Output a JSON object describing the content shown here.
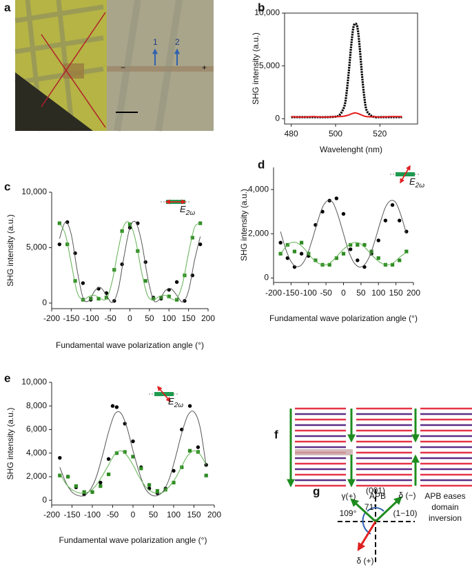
{
  "panel_labels": [
    "a",
    "b",
    "c",
    "d",
    "e",
    "f",
    "g"
  ],
  "panel_a": {
    "labels": [
      "1",
      "2",
      "−",
      "+"
    ]
  },
  "panel_f": {
    "label_apb": "APB",
    "label_eases": [
      "APB eases",
      "domain",
      "inversion"
    ]
  },
  "panel_g": {
    "labels": [
      "(001)",
      "γ(+)",
      "δ (−)",
      "71°",
      "109°",
      "(1−10)",
      "δ (+)"
    ]
  },
  "chart_data": [
    {
      "type": "line",
      "xlabel": "Wavelenght (nm)",
      "ylabel": "SHG intensity (a.u.)",
      "xlim": [
        477,
        537
      ],
      "xticks": [
        480,
        500,
        520
      ],
      "ylim": [
        -500,
        10000
      ],
      "yticks": [
        0,
        {
          "value": 5000,
          "label": "5,000"
        },
        {
          "value": 10000,
          "label": "10,000"
        }
      ],
      "x": [
        480,
        485,
        490,
        495,
        500,
        502,
        504,
        505,
        506,
        507,
        508,
        509,
        510,
        511,
        512,
        513,
        514,
        516,
        518,
        520,
        525,
        530
      ],
      "series": [
        {
          "color": "#000000",
          "values": [
            150,
            150,
            150,
            150,
            200,
            400,
            1200,
            2500,
            4500,
            6800,
            8600,
            9000,
            8500,
            6500,
            4000,
            2000,
            800,
            300,
            150,
            150,
            150,
            150
          ]
        },
        {
          "color": "#e41a1c",
          "values": [
            200,
            150,
            200,
            150,
            200,
            200,
            250,
            300,
            350,
            450,
            520,
            550,
            500,
            420,
            330,
            250,
            200,
            180,
            200,
            150,
            200,
            200
          ]
        }
      ]
    },
    {
      "type": "scatter",
      "xlabel": "Fundamental wave polarization angle (°)",
      "ylabel": "SHG intensity (a.u.)",
      "annotation": {
        "text": "E",
        "sub": "2ω"
      },
      "xlim": [
        -200,
        200
      ],
      "xticks": [
        -200,
        -150,
        -100,
        -50,
        0,
        50,
        100,
        150,
        200
      ],
      "ylim": [
        -500,
        10000
      ],
      "yticks": [
        0,
        {
          "value": 5000,
          "label": "5,000"
        },
        {
          "value": 10000,
          "label": "10,000"
        }
      ],
      "series": [
        {
          "color": "#000000",
          "mode": "markers",
          "marker": "circle",
          "x": [
            -180,
            -160,
            -140,
            -120,
            -100,
            -80,
            -60,
            -40,
            -20,
            0,
            20,
            40,
            60,
            80,
            100,
            120,
            140,
            160,
            180
          ],
          "values": [
            5300,
            7300,
            4500,
            1800,
            300,
            1300,
            900,
            200,
            3500,
            6800,
            7200,
            3700,
            500,
            400,
            1200,
            1900,
            200,
            2500,
            5300
          ]
        },
        {
          "color": "#2e8b22",
          "mode": "markers",
          "marker": "square",
          "x": [
            -180,
            -160,
            -140,
            -120,
            -100,
            -80,
            -60,
            -40,
            -20,
            0,
            20,
            40,
            60,
            80,
            100,
            120,
            140,
            160,
            180
          ],
          "values": [
            7200,
            5300,
            2000,
            300,
            400,
            400,
            500,
            3000,
            6500,
            7100,
            4700,
            2000,
            400,
            500,
            600,
            300,
            2500,
            5900,
            7200
          ]
        },
        {
          "color": "#555555",
          "mode": "line",
          "x": [
            -180,
            -165,
            -150,
            -135,
            -120,
            -105,
            -90,
            -75,
            -60,
            -45,
            -30,
            -15,
            0,
            15,
            30,
            45,
            60,
            75,
            90,
            105,
            120,
            135,
            150,
            165,
            180
          ],
          "values": [
            5800,
            7300,
            6200,
            3000,
            500,
            200,
            1100,
            1400,
            700,
            50,
            1200,
            4200,
            6800,
            7300,
            5500,
            2400,
            300,
            300,
            1100,
            1300,
            700,
            100,
            1100,
            3800,
            6000
          ]
        },
        {
          "color": "#5fb050",
          "mode": "line",
          "x": [
            -180,
            -165,
            -150,
            -135,
            -120,
            -105,
            -90,
            -75,
            -60,
            -45,
            -30,
            -15,
            0,
            15,
            30,
            45,
            60,
            75,
            90,
            105,
            120,
            135,
            150,
            165,
            180
          ],
          "values": [
            7200,
            6200,
            3600,
            1000,
            300,
            600,
            700,
            400,
            400,
            2000,
            4800,
            7000,
            7200,
            5600,
            2800,
            700,
            300,
            600,
            700,
            400,
            400,
            1800,
            4500,
            6800,
            7200
          ]
        }
      ]
    },
    {
      "type": "scatter",
      "xlabel": "Fundamental wave polarization angle (°)",
      "ylabel": "SHG intensity (a.u.)",
      "annotation": {
        "text": "E",
        "sub": "2ω"
      },
      "xlim": [
        -200,
        200
      ],
      "xticks": [
        -200,
        -150,
        -100,
        -50,
        0,
        50,
        100,
        150,
        200
      ],
      "ylim": [
        -200,
        5000
      ],
      "yticks": [
        0,
        {
          "value": 2000,
          "label": "2,000"
        },
        {
          "value": 4000,
          "label": "4,000"
        }
      ],
      "series": [
        {
          "color": "#000000",
          "mode": "markers",
          "marker": "circle",
          "x": [
            -180,
            -160,
            -140,
            -120,
            -100,
            -80,
            -60,
            -40,
            -20,
            0,
            20,
            40,
            60,
            80,
            100,
            120,
            140,
            160,
            180
          ],
          "values": [
            1600,
            900,
            500,
            1100,
            1000,
            2400,
            3000,
            3500,
            3600,
            2900,
            1300,
            800,
            500,
            1100,
            1700,
            2600,
            3300,
            2600,
            2100
          ]
        },
        {
          "color": "#2e8b22",
          "mode": "markers",
          "marker": "square",
          "x": [
            -180,
            -160,
            -140,
            -120,
            -100,
            -80,
            -60,
            -40,
            -20,
            0,
            20,
            40,
            60,
            80,
            100,
            120,
            140,
            160,
            180
          ],
          "values": [
            1100,
            1500,
            1200,
            1600,
            1100,
            800,
            600,
            600,
            900,
            1100,
            1500,
            1500,
            1500,
            1200,
            900,
            600,
            600,
            800,
            1200
          ]
        },
        {
          "color": "#555555",
          "mode": "line",
          "x": [
            -180,
            -165,
            -150,
            -135,
            -120,
            -105,
            -90,
            -75,
            -60,
            -45,
            -30,
            -15,
            0,
            15,
            30,
            45,
            60,
            75,
            90,
            105,
            120,
            135,
            150,
            165,
            180
          ],
          "values": [
            2100,
            1300,
            750,
            520,
            600,
            1000,
            1700,
            2500,
            3200,
            3500,
            3400,
            2800,
            2000,
            1200,
            700,
            500,
            600,
            1000,
            1700,
            2500,
            3200,
            3500,
            3400,
            2800,
            2000
          ]
        },
        {
          "color": "#5fb050",
          "mode": "line",
          "x": [
            -180,
            -165,
            -150,
            -135,
            -120,
            -105,
            -90,
            -75,
            -60,
            -45,
            -30,
            -15,
            0,
            15,
            30,
            45,
            60,
            75,
            90,
            105,
            120,
            135,
            150,
            165,
            180
          ],
          "values": [
            1100,
            1400,
            1600,
            1600,
            1450,
            1200,
            900,
            700,
            600,
            620,
            800,
            1050,
            1300,
            1500,
            1600,
            1580,
            1400,
            1150,
            900,
            700,
            600,
            620,
            780,
            1000,
            1150
          ]
        }
      ]
    },
    {
      "type": "scatter",
      "xlabel": "Fundamental wave polarization angle (°)",
      "ylabel": "SHG intensity (a.u.)",
      "annotation": {
        "text": "E",
        "sub": "2ω"
      },
      "xlim": [
        -200,
        200
      ],
      "xticks": [
        -200,
        -150,
        -100,
        -50,
        0,
        50,
        100,
        150,
        200
      ],
      "ylim": [
        -400,
        10000
      ],
      "yticks": [
        0,
        {
          "value": 2000,
          "label": "2,000"
        },
        {
          "value": 4000,
          "label": "4,000"
        },
        {
          "value": 6000,
          "label": "6,000"
        },
        {
          "value": 8000,
          "label": "8,000"
        },
        {
          "value": 10000,
          "label": "10,000"
        }
      ],
      "series": [
        {
          "color": "#000000",
          "mode": "markers",
          "marker": "circle",
          "x": [
            -180,
            -160,
            -140,
            -120,
            -100,
            -80,
            -60,
            -50,
            -40,
            -20,
            0,
            20,
            40,
            60,
            80,
            100,
            120,
            140,
            160,
            180
          ],
          "values": [
            3600,
            2000,
            1100,
            500,
            700,
            1500,
            3500,
            8000,
            7900,
            6500,
            5000,
            2800,
            1000,
            600,
            1000,
            2500,
            6000,
            8000,
            4500,
            3000
          ]
        },
        {
          "color": "#2e8b22",
          "mode": "markers",
          "marker": "square",
          "x": [
            -180,
            -160,
            -140,
            -120,
            -100,
            -80,
            -60,
            -40,
            -20,
            0,
            20,
            40,
            60,
            80,
            100,
            120,
            140,
            160,
            180
          ],
          "values": [
            2100,
            2000,
            1200,
            700,
            700,
            1200,
            2200,
            4000,
            4100,
            3700,
            2700,
            1300,
            800,
            900,
            1500,
            2800,
            4200,
            4100,
            2100
          ]
        },
        {
          "color": "#555555",
          "mode": "line",
          "x": [
            -180,
            -165,
            -150,
            -135,
            -120,
            -105,
            -90,
            -75,
            -60,
            -45,
            -30,
            -15,
            0,
            15,
            30,
            45,
            60,
            75,
            90,
            105,
            120,
            135,
            150,
            165,
            180
          ],
          "values": [
            2800,
            1500,
            700,
            400,
            400,
            900,
            2000,
            3800,
            5800,
            7300,
            7400,
            6200,
            4200,
            2400,
            1000,
            450,
            400,
            800,
            1900,
            3700,
            5700,
            7200,
            7500,
            6200,
            2900
          ]
        },
        {
          "color": "#5fb050",
          "mode": "line",
          "x": [
            -180,
            -165,
            -150,
            -135,
            -120,
            -105,
            -90,
            -75,
            -60,
            -45,
            -30,
            -15,
            0,
            15,
            30,
            45,
            60,
            75,
            90,
            105,
            120,
            135,
            150,
            165,
            180
          ],
          "values": [
            2300,
            1400,
            900,
            650,
            600,
            800,
            1300,
            2100,
            3000,
            3900,
            4200,
            3800,
            3000,
            2000,
            1200,
            750,
            600,
            700,
            1200,
            1900,
            2900,
            3800,
            4200,
            3900,
            3000
          ]
        }
      ]
    }
  ]
}
